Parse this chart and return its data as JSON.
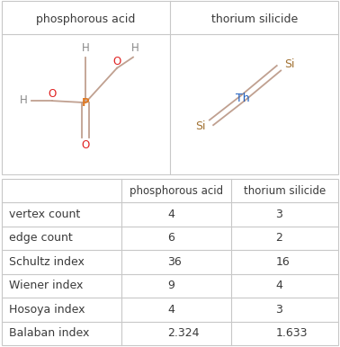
{
  "title_row": [
    "phosphorous acid",
    "thorium silicide"
  ],
  "row_labels": [
    "vertex count",
    "edge count",
    "Schultz index",
    "Wiener index",
    "Hosoya index",
    "Balaban index"
  ],
  "col1_values": [
    "4",
    "6",
    "36",
    "9",
    "4",
    "2.324"
  ],
  "col2_values": [
    "3",
    "2",
    "16",
    "4",
    "3",
    "1.633"
  ],
  "bg_color": "#ffffff",
  "table_text_color": "#3a3a3a",
  "header_text_color": "#3a3a3a",
  "grid_color": "#c8c8c8",
  "phosphorous_color": "#e07820",
  "oxygen_color": "#e02020",
  "hydrogen_color": "#888888",
  "thorium_color": "#2060c0",
  "silicon_color": "#a07030",
  "bond_color": "#c0a090"
}
